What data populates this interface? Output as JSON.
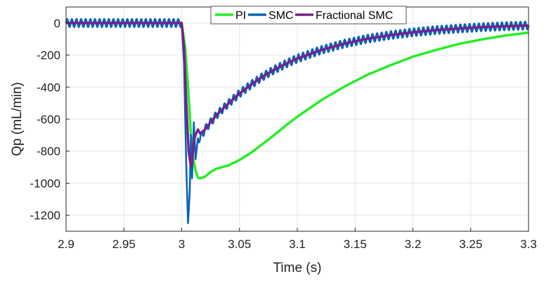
{
  "chart_data": {
    "type": "line",
    "title": "",
    "xlabel": "Time (s)",
    "ylabel": "Qp (mL/min)",
    "xlim": [
      2.9,
      3.3
    ],
    "ylim": [
      -1300,
      100
    ],
    "grid": true,
    "legend_position": "top-right",
    "x_ticks": [
      2.9,
      2.95,
      3.0,
      3.05,
      3.1,
      3.15,
      3.2,
      3.25,
      3.3
    ],
    "x_tick_labels": [
      "2.9",
      "2.95",
      "3",
      "3.05",
      "3.1",
      "3.15",
      "3.2",
      "3.25",
      "3.3"
    ],
    "y_ticks": [
      0,
      -200,
      -400,
      -600,
      -800,
      -1000,
      -1200
    ],
    "y_tick_labels": [
      "0",
      "-200",
      "-400",
      "-600",
      "-800",
      "-1000",
      "-1200"
    ],
    "series": [
      {
        "name": "PI",
        "color": "#22ee22",
        "x": [
          2.9,
          3.0,
          3.003,
          3.006,
          3.008,
          3.01,
          3.012,
          3.014,
          3.016,
          3.02,
          3.025,
          3.03,
          3.04,
          3.05,
          3.06,
          3.07,
          3.08,
          3.09,
          3.1,
          3.12,
          3.14,
          3.16,
          3.18,
          3.2,
          3.22,
          3.24,
          3.26,
          3.28,
          3.3
        ],
        "y": [
          0,
          0,
          -150,
          -450,
          -700,
          -850,
          -920,
          -965,
          -970,
          -960,
          -930,
          -910,
          -890,
          -855,
          -810,
          -755,
          -700,
          -640,
          -585,
          -485,
          -400,
          -325,
          -265,
          -210,
          -168,
          -130,
          -102,
          -78,
          -60
        ]
      },
      {
        "name": "SMC",
        "color": "#0a63b5",
        "x": [
          2.9,
          3.0,
          3.002,
          3.004,
          3.0055,
          3.007,
          3.008,
          3.009,
          3.0105,
          3.012,
          3.014,
          3.016,
          3.02,
          3.025,
          3.03,
          3.04,
          3.05,
          3.06,
          3.07,
          3.08,
          3.09,
          3.1,
          3.12,
          3.14,
          3.16,
          3.18,
          3.2,
          3.22,
          3.24,
          3.26,
          3.28,
          3.3
        ],
        "y": [
          0,
          0,
          -250,
          -900,
          -1250,
          -1050,
          -700,
          -970,
          -620,
          -850,
          -720,
          -720,
          -665,
          -620,
          -575,
          -505,
          -440,
          -385,
          -335,
          -292,
          -255,
          -222,
          -170,
          -130,
          -99,
          -76,
          -58,
          -44,
          -34,
          -26,
          -20,
          -15
        ],
        "oscillation_amplitude": 25
      },
      {
        "name": "Fractional SMC",
        "color": "#7a1f8c",
        "x": [
          2.9,
          3.0,
          3.002,
          3.004,
          3.006,
          3.008,
          3.009,
          3.0105,
          3.012,
          3.014,
          3.016,
          3.02,
          3.025,
          3.03,
          3.04,
          3.05,
          3.06,
          3.07,
          3.08,
          3.09,
          3.1,
          3.12,
          3.14,
          3.16,
          3.18,
          3.2,
          3.22,
          3.24,
          3.26,
          3.28,
          3.3
        ],
        "y": [
          0,
          0,
          -150,
          -500,
          -800,
          -900,
          -860,
          -740,
          -700,
          -665,
          -690,
          -665,
          -620,
          -575,
          -505,
          -440,
          -385,
          -335,
          -292,
          -255,
          -222,
          -170,
          -130,
          -99,
          -76,
          -58,
          -44,
          -34,
          -26,
          -20,
          -15
        ]
      }
    ]
  }
}
